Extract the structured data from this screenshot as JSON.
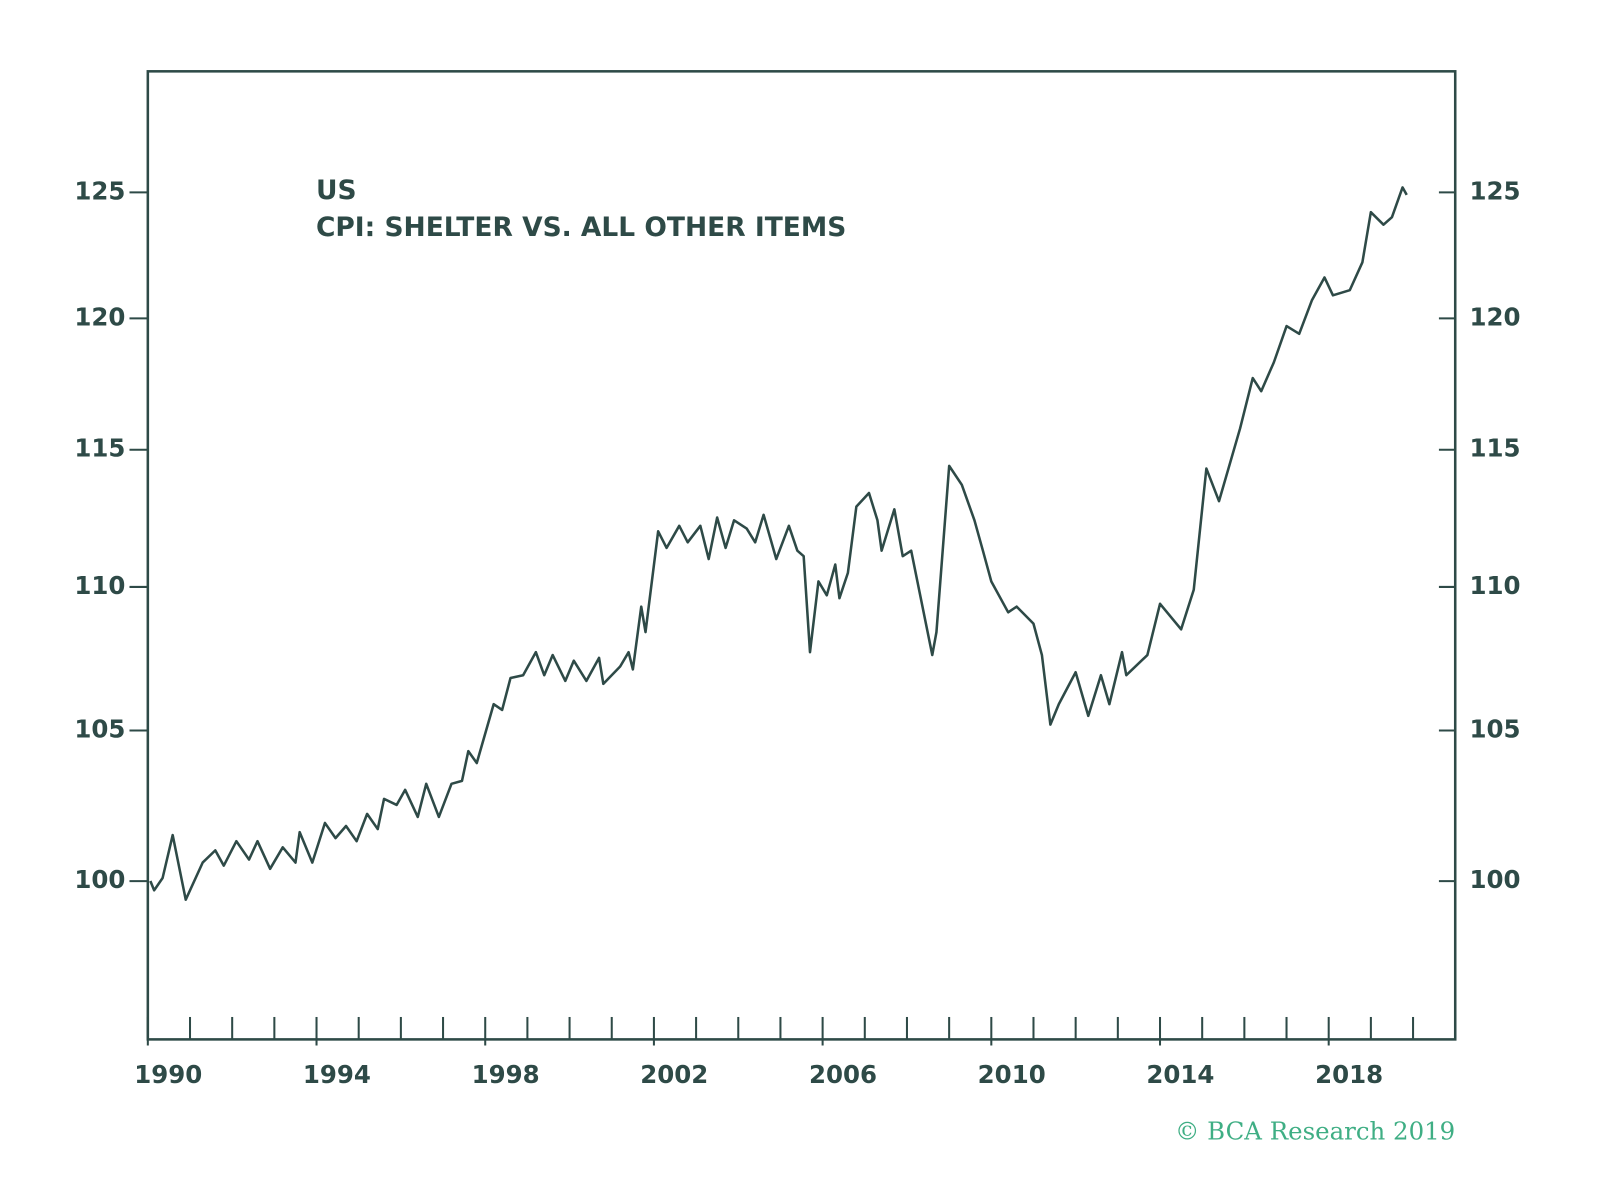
{
  "chart_data": {
    "type": "line",
    "title": "US",
    "subtitle": "CPI: SHELTER VS. ALL OTHER ITEMS",
    "source": "© BCA Research 2019",
    "log_scale": true,
    "grid": false,
    "xlim": [
      1990,
      2021
    ],
    "xticks": [
      1990,
      1994,
      1998,
      2002,
      2006,
      2010,
      2014,
      2018
    ],
    "x_minor_ticks": [
      1990,
      1991,
      1992,
      1993,
      1994,
      1995,
      1996,
      1997,
      1998,
      1999,
      2000,
      2001,
      2002,
      2003,
      2004,
      2005,
      2006,
      2007,
      2008,
      2009,
      2010,
      2011,
      2012,
      2013,
      2014,
      2015,
      2016,
      2017,
      2018,
      2019,
      2020
    ],
    "ylim": [
      95,
      130
    ],
    "yticks": [
      100,
      105,
      110,
      115,
      120,
      125
    ],
    "y2lim": [
      95,
      130
    ],
    "y2ticks": [
      100,
      105,
      110,
      115,
      120,
      125
    ],
    "x": [
      1990.06,
      1990.15,
      1990.35,
      1990.59,
      1990.9,
      1991.3,
      1991.6,
      1991.8,
      1992.1,
      1992.4,
      1992.6,
      1992.9,
      1993.2,
      1993.5,
      1993.6,
      1993.9,
      1994.2,
      1994.45,
      1994.7,
      1994.95,
      1995.2,
      1995.45,
      1995.6,
      1995.9,
      1996.1,
      1996.4,
      1996.6,
      1996.9,
      1997.2,
      1997.45,
      1997.6,
      1997.8,
      1998.2,
      1998.4,
      1998.6,
      1998.9,
      1999.2,
      1999.4,
      1999.6,
      1999.9,
      2000.1,
      2000.4,
      2000.7,
      2000.8,
      2001.2,
      2001.4,
      2001.5,
      2001.7,
      2001.8,
      2002.1,
      2002.3,
      2002.6,
      2002.8,
      2003.1,
      2003.3,
      2003.5,
      2003.7,
      2003.9,
      2004.2,
      2004.4,
      2004.6,
      2004.9,
      2005.2,
      2005.4,
      2005.55,
      2005.7,
      2005.9,
      2006.1,
      2006.3,
      2006.4,
      2006.6,
      2006.8,
      2007.1,
      2007.3,
      2007.4,
      2007.7,
      2007.9,
      2008.1,
      2008.3,
      2008.6,
      2008.7,
      2009.0,
      2009.3,
      2009.6,
      2009.8,
      2010.0,
      2010.4,
      2010.6,
      2011.0,
      2011.2,
      2011.4,
      2011.6,
      2012.0,
      2012.3,
      2012.6,
      2012.8,
      2013.1,
      2013.2,
      2013.7,
      2014.0,
      2014.5,
      2014.8,
      2015.1,
      2015.4,
      2015.9,
      2016.2,
      2016.4,
      2016.7,
      2017.0,
      2017.3,
      2017.6,
      2017.9,
      2018.1,
      2018.5,
      2018.8,
      2019.0,
      2019.3,
      2019.5,
      2019.75,
      2019.85
    ],
    "series": [
      {
        "name": "CPI: Shelter vs. all other items",
        "color": "#2e4a47",
        "values": [
          100.0,
          99.7,
          100.1,
          101.5,
          99.4,
          100.6,
          101.0,
          100.5,
          101.3,
          100.7,
          101.3,
          100.4,
          101.1,
          100.6,
          101.6,
          100.6,
          101.9,
          101.4,
          101.8,
          101.3,
          102.2,
          101.7,
          102.7,
          102.5,
          103.0,
          102.1,
          103.2,
          102.1,
          103.2,
          103.3,
          104.3,
          103.9,
          105.9,
          105.7,
          106.8,
          106.9,
          107.7,
          106.9,
          107.6,
          106.7,
          107.4,
          106.7,
          107.5,
          106.6,
          107.2,
          107.7,
          107.1,
          109.3,
          108.4,
          112.0,
          111.4,
          112.2,
          111.6,
          112.2,
          111.0,
          112.5,
          111.4,
          112.4,
          112.1,
          111.6,
          112.6,
          111.0,
          112.2,
          111.3,
          111.1,
          107.7,
          110.2,
          109.7,
          110.8,
          109.6,
          110.5,
          112.9,
          113.4,
          112.4,
          111.3,
          112.8,
          111.1,
          111.3,
          109.8,
          107.6,
          108.4,
          114.4,
          113.7,
          112.4,
          111.3,
          110.2,
          109.1,
          109.3,
          108.7,
          107.6,
          105.2,
          105.9,
          107.0,
          105.5,
          106.9,
          105.9,
          107.7,
          106.9,
          107.6,
          109.4,
          108.5,
          109.9,
          114.3,
          113.1,
          115.8,
          117.7,
          117.2,
          118.3,
          119.7,
          119.4,
          120.7,
          121.6,
          120.9,
          121.1,
          122.2,
          124.2,
          123.7,
          124.0,
          125.2,
          124.9
        ]
      }
    ]
  }
}
